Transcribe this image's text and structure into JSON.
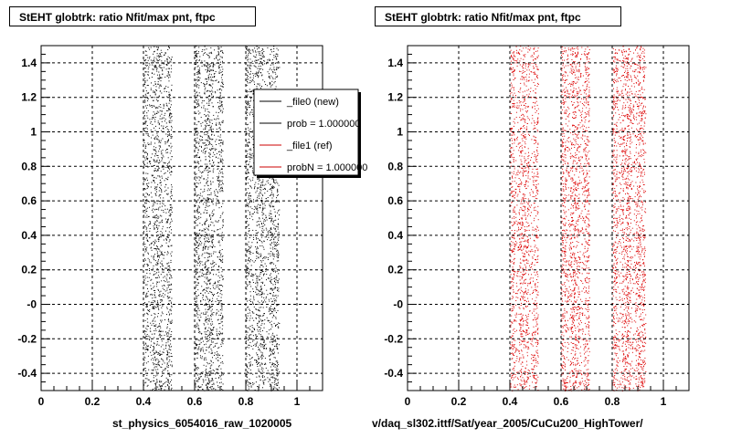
{
  "chart_data": [
    {
      "type": "scatter",
      "title": "StEHT globtrk: ratio Nfit/max pnt, ftpc",
      "xlabel": "st_physics_6054016_raw_1020005",
      "xlim": [
        0,
        1.1
      ],
      "ylim": [
        -0.5,
        1.5
      ],
      "x_ticks": [
        "0",
        "0.2",
        "0.4",
        "0.6",
        "0.8",
        "1"
      ],
      "y_ticks": [
        "-0.4",
        "-0.2",
        "-0",
        "0.2",
        "0.4",
        "0.6",
        "0.8",
        "1",
        "1.2",
        "1.4"
      ],
      "grid": true,
      "marker_color": "#000000",
      "bands": [
        [
          0.4,
          0.51
        ],
        [
          0.6,
          0.71
        ],
        [
          0.8,
          0.93
        ]
      ],
      "legend": {
        "placement": "top-right",
        "entries": [
          {
            "label": "_file0 (new)",
            "color": "#000000"
          },
          {
            "label": "prob = 1.000000",
            "color": "#000000"
          },
          {
            "label": "_file1 (ref)",
            "color": "#cc0000"
          },
          {
            "label": "probN = 1.000000",
            "color": "#cc0000"
          }
        ]
      }
    },
    {
      "type": "scatter",
      "title": "StEHT globtrk: ratio Nfit/max pnt, ftpc",
      "xlabel": "v/daq_sl302.ittf/Sat/year_2005/CuCu200_HighTower/",
      "xlim": [
        0,
        1.1
      ],
      "ylim": [
        -0.5,
        1.5
      ],
      "x_ticks": [
        "0",
        "0.2",
        "0.4",
        "0.6",
        "0.8",
        "1"
      ],
      "y_ticks": [
        "-0.4",
        "-0.2",
        "-0",
        "0.2",
        "0.4",
        "0.6",
        "0.8",
        "1",
        "1.2",
        "1.4"
      ],
      "grid": true,
      "marker_color": "#dd0000",
      "bands": [
        [
          0.4,
          0.51
        ],
        [
          0.6,
          0.71
        ],
        [
          0.8,
          0.93
        ]
      ]
    }
  ]
}
